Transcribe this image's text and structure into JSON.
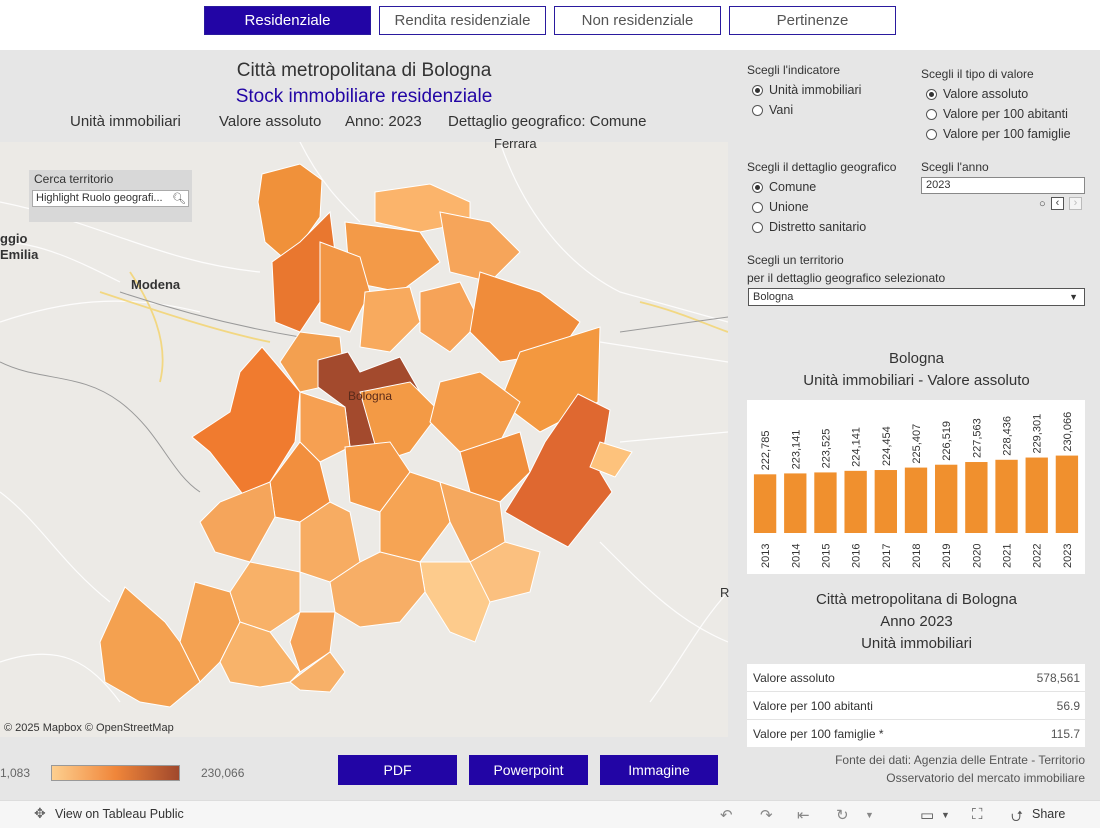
{
  "tabs": [
    {
      "label": "Residenziale",
      "active": true
    },
    {
      "label": "Rendita residenziale",
      "active": false
    },
    {
      "label": "Non residenziale",
      "active": false
    },
    {
      "label": "Pertinenze",
      "active": false
    }
  ],
  "header": {
    "title": "Città metropolitana di Bologna",
    "subtitle": "Stock immobiliare residenziale",
    "indicator": "Unità immobiliari",
    "value_type": "Valore assoluto",
    "year": "Anno: 2023",
    "detail": "Dettaglio geografico: Comune"
  },
  "map": {
    "search_title": "Cerca territorio",
    "search_placeholder": "Highlight Ruolo geografi...",
    "credit": "© 2025 Mapbox  © OpenStreetMap",
    "places": {
      "ferrara": "Ferrara",
      "modena": "Modena",
      "bologna": "Bologna",
      "reggio_1": "ggio",
      "reggio_2": "Emilia",
      "edge_r": "R"
    },
    "colors": {
      "low": "#fdcf8f",
      "mid": "#f0863a",
      "high": "#a0482c"
    }
  },
  "legend": {
    "min": "1,083",
    "max": "230,066"
  },
  "export_buttons": {
    "pdf": "PDF",
    "ppt": "Powerpoint",
    "img": "Immagine"
  },
  "controls": {
    "indicator_label": "Scegli l'indicatore",
    "indicator_options": [
      "Unità immobiliari",
      "Vani"
    ],
    "indicator_selected": 0,
    "value_type_label": "Scegli il tipo di valore",
    "value_type_options": [
      "Valore assoluto",
      "Valore per 100 abitanti",
      "Valore per 100 famiglie"
    ],
    "value_type_selected": 0,
    "detail_label": "Scegli il dettaglio geografico",
    "detail_options": [
      "Comune",
      "Unione",
      "Distretto sanitario"
    ],
    "detail_selected": 0,
    "year_label": "Scegli l'anno",
    "year_value": "2023",
    "territory_label_1": "Scegli un territorio",
    "territory_label_2": "per il dettaglio geografico selezionato",
    "territory_value": "Bologna"
  },
  "chart_data": {
    "type": "bar",
    "title": "Bologna",
    "subtitle": "Unità immobiliari - Valore assoluto",
    "categories": [
      "2013",
      "2014",
      "2015",
      "2016",
      "2017",
      "2018",
      "2019",
      "2020",
      "2021",
      "2022",
      "2023"
    ],
    "values": [
      222785,
      223141,
      223525,
      224141,
      224454,
      225407,
      226519,
      227563,
      228436,
      229301,
      230066
    ],
    "labels": [
      "222,785",
      "223,141",
      "223,525",
      "224,141",
      "224,454",
      "225,407",
      "226,519",
      "227,563",
      "228,436",
      "229,301",
      "230,066"
    ],
    "ylim": [
      200000,
      240000
    ],
    "color": "#f0902e"
  },
  "summary": {
    "title_1": "Città metropolitana di Bologna",
    "title_2": "Anno 2023",
    "title_3": "Unità immobiliari",
    "rows": [
      {
        "label": "Valore assoluto",
        "value": "578,561"
      },
      {
        "label": "Valore per 100 abitanti",
        "value": "56.9"
      },
      {
        "label": "Valore per 100 famiglie *",
        "value": "115.7"
      }
    ]
  },
  "source": {
    "line1": "Fonte dei dati: Agenzia delle Entrate - Territorio",
    "line2": "Osservatorio del mercato immobiliare"
  },
  "footer": {
    "view_label": "View on Tableau Public",
    "share_label": "Share"
  }
}
